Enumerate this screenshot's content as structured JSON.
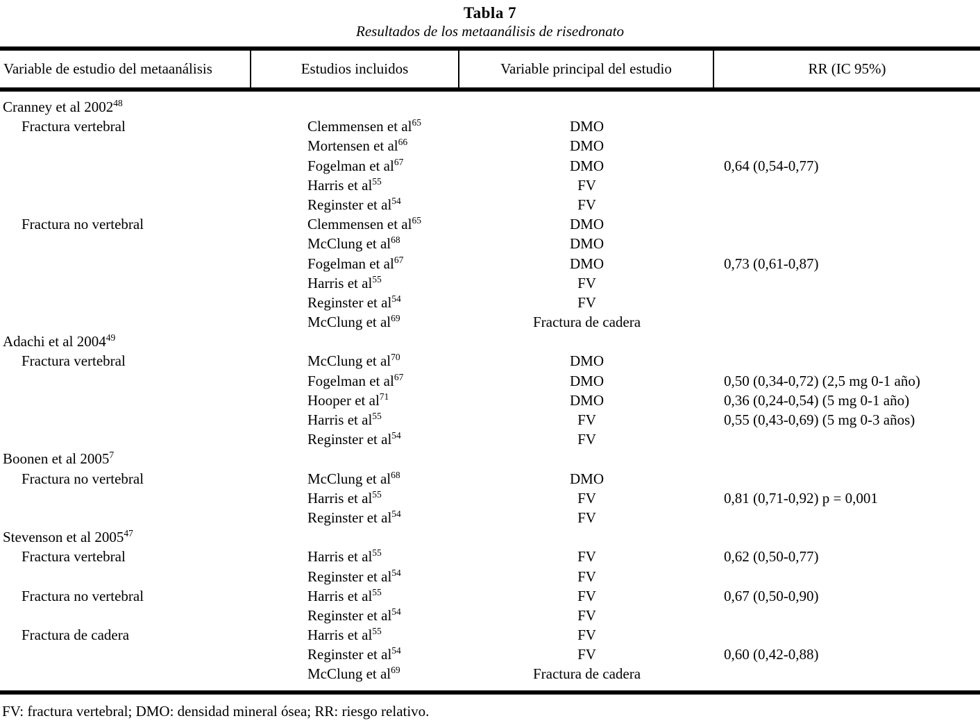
{
  "colors": {
    "ink": "#000000",
    "paper": "#ffffff"
  },
  "page": {
    "title": "Tabla 7",
    "subtitle": "Resultados de los metaanálisis de risedronato",
    "footnote": "FV: fractura vertebral; DMO: densidad mineral ósea; RR: riesgo relativo."
  },
  "table": {
    "columns": [
      "Variable de estudio del metaanálisis",
      "Estudios incluidos",
      "Variable principal del estudio",
      "RR (IC 95%)"
    ],
    "rows": [
      {
        "label": "Cranney et al 2002",
        "label_sup": "48",
        "indent": false,
        "study": "",
        "study_sup": "",
        "outcome": "",
        "rr": ""
      },
      {
        "label": "Fractura vertebral",
        "label_sup": "",
        "indent": true,
        "study": "Clemmensen et al",
        "study_sup": "65",
        "outcome": "DMO",
        "rr": ""
      },
      {
        "label": "",
        "label_sup": "",
        "indent": true,
        "study": "Mortensen et al",
        "study_sup": "66",
        "outcome": "DMO",
        "rr": ""
      },
      {
        "label": "",
        "label_sup": "",
        "indent": true,
        "study": "Fogelman et al",
        "study_sup": "67",
        "outcome": "DMO",
        "rr": "0,64 (0,54-0,77)"
      },
      {
        "label": "",
        "label_sup": "",
        "indent": true,
        "study": "Harris et al",
        "study_sup": "55",
        "outcome": "FV",
        "rr": ""
      },
      {
        "label": "",
        "label_sup": "",
        "indent": true,
        "study": "Reginster et al",
        "study_sup": "54",
        "outcome": "FV",
        "rr": ""
      },
      {
        "label": "Fractura no vertebral",
        "label_sup": "",
        "indent": true,
        "study": "Clemmensen et al",
        "study_sup": "65",
        "outcome": "DMO",
        "rr": ""
      },
      {
        "label": "",
        "label_sup": "",
        "indent": true,
        "study": "McClung et al",
        "study_sup": "68",
        "outcome": "DMO",
        "rr": ""
      },
      {
        "label": "",
        "label_sup": "",
        "indent": true,
        "study": "Fogelman et al",
        "study_sup": "67",
        "outcome": "DMO",
        "rr": "0,73 (0,61-0,87)"
      },
      {
        "label": "",
        "label_sup": "",
        "indent": true,
        "study": "Harris et al",
        "study_sup": "55",
        "outcome": "FV",
        "rr": ""
      },
      {
        "label": "",
        "label_sup": "",
        "indent": true,
        "study": "Reginster et al",
        "study_sup": "54",
        "outcome": "FV",
        "rr": ""
      },
      {
        "label": "",
        "label_sup": "",
        "indent": true,
        "study": "McClung et al",
        "study_sup": "69",
        "outcome": "Fractura de cadera",
        "rr": ""
      },
      {
        "label": "Adachi et al 2004",
        "label_sup": "49",
        "indent": false,
        "study": "",
        "study_sup": "",
        "outcome": "",
        "rr": ""
      },
      {
        "label": "Fractura vertebral",
        "label_sup": "",
        "indent": true,
        "study": "McClung et al",
        "study_sup": "70",
        "outcome": "DMO",
        "rr": ""
      },
      {
        "label": "",
        "label_sup": "",
        "indent": true,
        "study": "Fogelman et al",
        "study_sup": "67",
        "outcome": "DMO",
        "rr": "0,50 (0,34-0,72) (2,5 mg 0-1 año)"
      },
      {
        "label": "",
        "label_sup": "",
        "indent": true,
        "study": "Hooper et al",
        "study_sup": "71",
        "outcome": "DMO",
        "rr": "0,36 (0,24-0,54) (5 mg 0-1 año)"
      },
      {
        "label": "",
        "label_sup": "",
        "indent": true,
        "study": "Harris et al",
        "study_sup": "55",
        "outcome": "FV",
        "rr": "0,55 (0,43-0,69) (5 mg 0-3 años)"
      },
      {
        "label": "",
        "label_sup": "",
        "indent": true,
        "study": "Reginster et al",
        "study_sup": "54",
        "outcome": "FV",
        "rr": ""
      },
      {
        "label": "Boonen et al 2005",
        "label_sup": "7",
        "indent": false,
        "study": "",
        "study_sup": "",
        "outcome": "",
        "rr": ""
      },
      {
        "label": "Fractura no vertebral",
        "label_sup": "",
        "indent": true,
        "study": "McClung et al",
        "study_sup": "68",
        "outcome": "DMO",
        "rr": ""
      },
      {
        "label": "",
        "label_sup": "",
        "indent": true,
        "study": "Harris et al",
        "study_sup": "55",
        "outcome": "FV",
        "rr": "0,81 (0,71-0,92) p = 0,001"
      },
      {
        "label": "",
        "label_sup": "",
        "indent": true,
        "study": "Reginster et al",
        "study_sup": "54",
        "outcome": "FV",
        "rr": ""
      },
      {
        "label": "Stevenson et al 2005",
        "label_sup": "47",
        "indent": false,
        "study": "",
        "study_sup": "",
        "outcome": "",
        "rr": ""
      },
      {
        "label": "Fractura vertebral",
        "label_sup": "",
        "indent": true,
        "study": "Harris et al",
        "study_sup": "55",
        "outcome": "FV",
        "rr": "0,62 (0,50-0,77)"
      },
      {
        "label": "",
        "label_sup": "",
        "indent": true,
        "study": "Reginster et al",
        "study_sup": "54",
        "outcome": "FV",
        "rr": ""
      },
      {
        "label": "Fractura no vertebral",
        "label_sup": "",
        "indent": true,
        "study": "Harris et al",
        "study_sup": "55",
        "outcome": "FV",
        "rr": "0,67 (0,50-0,90)"
      },
      {
        "label": "",
        "label_sup": "",
        "indent": true,
        "study": "Reginster et al",
        "study_sup": "54",
        "outcome": "FV",
        "rr": ""
      },
      {
        "label": "Fractura de cadera",
        "label_sup": "",
        "indent": true,
        "study": "Harris et al",
        "study_sup": "55",
        "outcome": "FV",
        "rr": ""
      },
      {
        "label": "",
        "label_sup": "",
        "indent": true,
        "study": "Reginster et al",
        "study_sup": "54",
        "outcome": "FV",
        "rr": "0,60 (0,42-0,88)"
      },
      {
        "label": "",
        "label_sup": "",
        "indent": true,
        "study": "McClung et al",
        "study_sup": "69",
        "outcome": "Fractura de cadera",
        "rr": ""
      }
    ]
  }
}
